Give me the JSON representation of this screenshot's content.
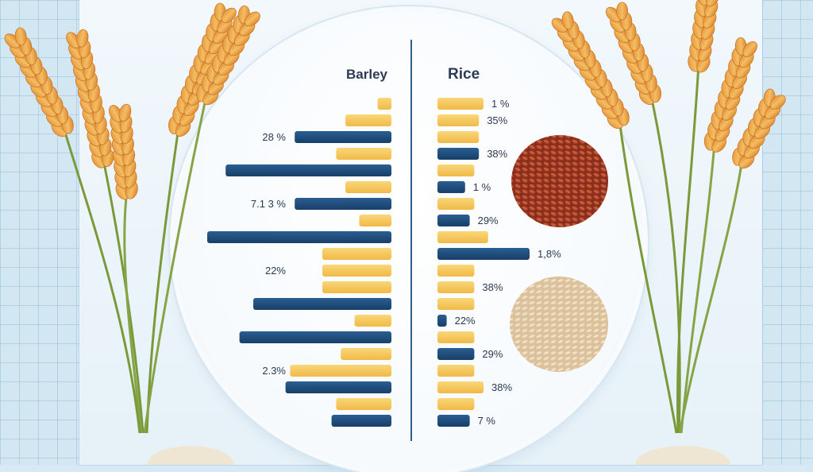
{
  "chart_data": {
    "type": "bar",
    "layout": "back-to-back horizontal bars",
    "panels": [
      {
        "name": "Barley",
        "side": "left",
        "bars": [
          {
            "color": "yellow",
            "value": 0.3
          },
          {
            "color": "yellow",
            "value": 1.0
          },
          {
            "color": "navy",
            "value": 2.1,
            "label": "28 %"
          },
          {
            "color": "yellow",
            "value": 1.2
          },
          {
            "color": "navy",
            "value": 3.6
          },
          {
            "color": "yellow",
            "value": 1.0
          },
          {
            "color": "navy",
            "value": 2.1,
            "label": "7.1 3 %"
          },
          {
            "color": "yellow",
            "value": 0.7
          },
          {
            "color": "navy",
            "value": 4.0
          },
          {
            "color": "yellow",
            "value": 1.5
          },
          {
            "color": "yellow",
            "value": 1.5,
            "label": "22%"
          },
          {
            "color": "yellow",
            "value": 1.5
          },
          {
            "color": "navy",
            "value": 3.0
          },
          {
            "color": "yellow",
            "value": 0.8
          },
          {
            "color": "navy",
            "value": 3.3
          },
          {
            "color": "yellow",
            "value": 1.1
          },
          {
            "color": "yellow",
            "value": 2.2,
            "label": "2.3%"
          },
          {
            "color": "navy",
            "value": 2.3
          },
          {
            "color": "yellow",
            "value": 1.2
          },
          {
            "color": "navy",
            "value": 1.3
          }
        ]
      },
      {
        "name": "Rice",
        "side": "right",
        "bars": [
          {
            "color": "yellow",
            "value": 1.0,
            "label": "1 %"
          },
          {
            "color": "yellow",
            "value": 0.9,
            "label": "35%"
          },
          {
            "color": "yellow",
            "value": 0.9
          },
          {
            "color": "navy",
            "value": 0.9,
            "label": "38%"
          },
          {
            "color": "yellow",
            "value": 0.8
          },
          {
            "color": "navy",
            "value": 0.6,
            "label": "1 %"
          },
          {
            "color": "yellow",
            "value": 0.8
          },
          {
            "color": "navy",
            "value": 0.7,
            "label": "29%"
          },
          {
            "color": "yellow",
            "value": 1.1
          },
          {
            "color": "navy",
            "value": 2.0,
            "label": "1,8%"
          },
          {
            "color": "yellow",
            "value": 0.8
          },
          {
            "color": "yellow",
            "value": 0.8,
            "label": "38%"
          },
          {
            "color": "yellow",
            "value": 0.8
          },
          {
            "color": "navy",
            "value": 0.2,
            "label": "22%"
          },
          {
            "color": "yellow",
            "value": 0.8
          },
          {
            "color": "navy",
            "value": 0.8,
            "label": "29%"
          },
          {
            "color": "yellow",
            "value": 0.8
          },
          {
            "color": "yellow",
            "value": 1.0,
            "label": "38%"
          },
          {
            "color": "yellow",
            "value": 0.8
          },
          {
            "color": "navy",
            "value": 0.7,
            "label": "7 %"
          }
        ]
      }
    ],
    "title": "",
    "xlabel": "",
    "ylabel": "",
    "legend": "none",
    "grid": false,
    "colors": {
      "yellow": "#f6c65a",
      "navy": "#1f4f7e",
      "divider": "#2d5f8c",
      "label": "#2b3a55"
    }
  },
  "decorations": {
    "icons": [
      "wheat-stalks-left-icon",
      "wheat-stalks-right-icon",
      "red-rice-pile-icon",
      "brown-rice-pile-icon"
    ]
  }
}
